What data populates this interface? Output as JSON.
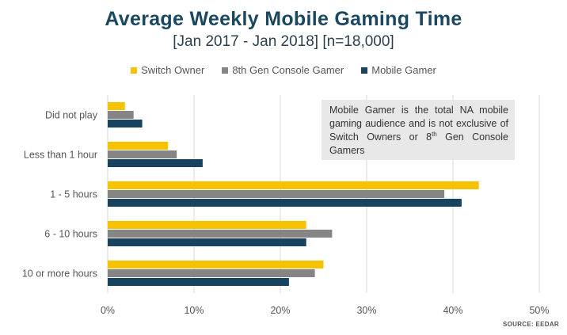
{
  "chart_data": {
    "type": "bar",
    "orientation": "horizontal",
    "title": "Average Weekly Mobile Gaming Time",
    "subtitle": "[Jan 2017 - Jan 2018] [n=18,000]",
    "categories": [
      "Did not play",
      "Less than 1 hour",
      "1 - 5 hours",
      "6 - 10 hours",
      "10 or more hours"
    ],
    "series": [
      {
        "name": "Switch Owner",
        "color": "#f7c200",
        "values": [
          2,
          7,
          43,
          23,
          25
        ]
      },
      {
        "name": "8th Gen Console Gamer",
        "color": "#858585",
        "values": [
          3,
          8,
          39,
          26,
          24
        ]
      },
      {
        "name": "Mobile Gamer",
        "color": "#17435e",
        "values": [
          4,
          11,
          41,
          23,
          21
        ]
      }
    ],
    "xlim": [
      0,
      50
    ],
    "xticks": [
      "0%",
      "10%",
      "20%",
      "30%",
      "40%",
      "50%"
    ],
    "xlabel": "",
    "ylabel": "",
    "grid": true,
    "legend_position": "top-center",
    "source": "SOURCE: EEDAR"
  },
  "note": {
    "text_main": "Mobile Gamer is the total NA mobile gaming audience and is not exclusive of Switch Owners or 8",
    "superscript": "th",
    "text_tail": " Gen Console Gamers"
  }
}
